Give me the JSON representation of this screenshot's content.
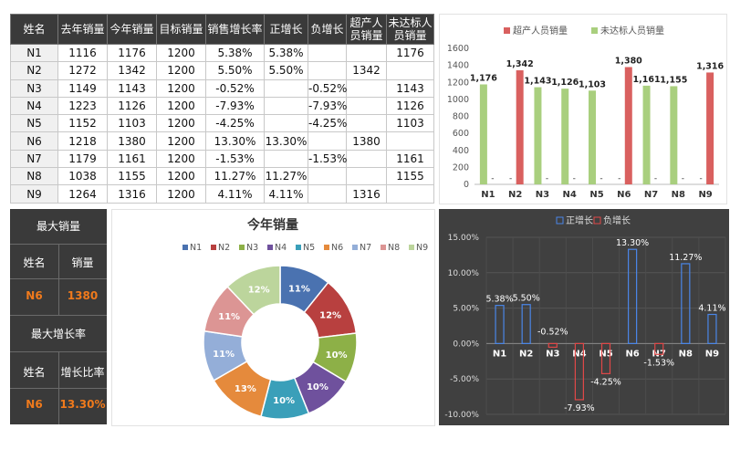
{
  "table": {
    "headers": [
      "姓名",
      "去年销量",
      "今年销量",
      "目标销量",
      "销售增长率",
      "正增长",
      "负增长",
      "超产人员销量",
      "未达标人员销量"
    ],
    "rows": [
      [
        "N1",
        "1116",
        "1176",
        "1200",
        "5.38%",
        "5.38%",
        "",
        "",
        "1176"
      ],
      [
        "N2",
        "1272",
        "1342",
        "1200",
        "5.50%",
        "5.50%",
        "",
        "1342",
        ""
      ],
      [
        "N3",
        "1149",
        "1143",
        "1200",
        "-0.52%",
        "",
        "-0.52%",
        "",
        "1143"
      ],
      [
        "N4",
        "1223",
        "1126",
        "1200",
        "-7.93%",
        "",
        "-7.93%",
        "",
        "1126"
      ],
      [
        "N5",
        "1152",
        "1103",
        "1200",
        "-4.25%",
        "",
        "-4.25%",
        "",
        "1103"
      ],
      [
        "N6",
        "1218",
        "1380",
        "1200",
        "13.30%",
        "13.30%",
        "",
        "1380",
        ""
      ],
      [
        "N7",
        "1179",
        "1161",
        "1200",
        "-1.53%",
        "",
        "-1.53%",
        "",
        "1161"
      ],
      [
        "N8",
        "1038",
        "1155",
        "1200",
        "11.27%",
        "11.27%",
        "",
        "",
        "1155"
      ],
      [
        "N9",
        "1264",
        "1316",
        "1200",
        "4.11%",
        "4.11%",
        "",
        "1316",
        ""
      ]
    ]
  },
  "summary": {
    "max_sales_title": "最大销量",
    "name_label": "姓名",
    "sales_label": "销量",
    "max_sales_name": "N6",
    "max_sales_value": "1380",
    "max_growth_title": "最大增长率",
    "growth_label": "增长比率",
    "max_growth_name": "N6",
    "max_growth_value": "13.30%"
  },
  "chart_data": [
    {
      "type": "bar",
      "categories": [
        "N1",
        "N2",
        "N3",
        "N4",
        "N5",
        "N6",
        "N7",
        "N8",
        "N9"
      ],
      "series": [
        {
          "name": "超产人员销量",
          "values": [
            null,
            1342,
            null,
            null,
            null,
            1380,
            null,
            null,
            1316
          ],
          "color": "#d9605f"
        },
        {
          "name": "未达标人员销量",
          "values": [
            1176,
            null,
            1143,
            1126,
            1103,
            null,
            1161,
            1155,
            null
          ],
          "color": "#a9cf7e"
        }
      ],
      "data_labels": [
        "1,176",
        "1,342",
        "1,143",
        "1,126",
        "1,103",
        "1,380",
        "1,161",
        "1,155",
        "1,316"
      ],
      "ylim": [
        0,
        1600
      ],
      "yticks": [
        "0",
        "200",
        "400",
        "600",
        "800",
        "1000",
        "1200",
        "1400",
        "1600"
      ],
      "gap_label": "-",
      "legend": "top"
    },
    {
      "type": "pie",
      "title": "今年销量",
      "categories": [
        "N1",
        "N2",
        "N3",
        "N4",
        "N5",
        "N6",
        "N7",
        "N8",
        "N9"
      ],
      "values": [
        1176,
        1342,
        1143,
        1126,
        1103,
        1380,
        1161,
        1155,
        1316
      ],
      "data_labels": [
        "11%",
        "12%",
        "10%",
        "10%",
        "10%",
        "13%",
        "11%",
        "11%",
        "12%"
      ],
      "colors": [
        "#4a72b0",
        "#b8403f",
        "#8db047",
        "#6f519d",
        "#3a9fb9",
        "#e58a3c",
        "#94aed8",
        "#dc9594",
        "#bcd59c"
      ],
      "legend": "top"
    },
    {
      "type": "bar",
      "categories": [
        "N1",
        "N2",
        "N3",
        "N4",
        "N5",
        "N6",
        "N7",
        "N8",
        "N9"
      ],
      "series": [
        {
          "name": "正增长",
          "values": [
            5.38,
            5.5,
            null,
            null,
            null,
            13.3,
            null,
            11.27,
            4.11
          ],
          "color": "#4a86e8"
        },
        {
          "name": "负增长",
          "values": [
            null,
            null,
            -0.52,
            -7.93,
            -4.25,
            null,
            -1.53,
            null,
            null
          ],
          "color": "#e04848"
        }
      ],
      "data_labels": [
        "5.38%",
        "5.50%",
        "-0.52%",
        "-7.93%",
        "-4.25%",
        "13.30%",
        "-1.53%",
        "11.27%",
        "4.11%"
      ],
      "ylim": [
        -10,
        15
      ],
      "yticks": [
        "-10.00%",
        "-5.00%",
        "0.00%",
        "5.00%",
        "10.00%",
        "15.00%"
      ],
      "legend": "top"
    }
  ]
}
